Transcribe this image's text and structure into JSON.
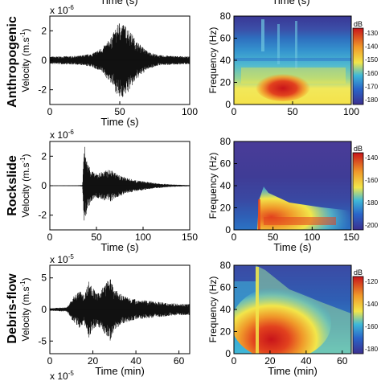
{
  "top_partial": {
    "left_label": "Time (s)",
    "right_label": "Time (s)",
    "bottom_left_exponent": "x 10",
    "bottom_left_exponent_power": "-5"
  },
  "chart_data": [
    {
      "type": "line",
      "row": "Anthropogenic",
      "exponent_label": "x 10",
      "exponent_power": "-6",
      "xlabel": "Time (s)",
      "ylabel": "Velocity (m.s-1)",
      "xlim": [
        0,
        100
      ],
      "ylim": [
        -3,
        3
      ],
      "xticks": [
        0,
        50,
        100
      ],
      "yticks": [
        -2,
        0,
        2
      ],
      "envelope": [
        [
          0,
          0.25
        ],
        [
          20,
          0.3
        ],
        [
          30,
          0.45
        ],
        [
          38,
          0.9
        ],
        [
          44,
          1.6
        ],
        [
          50,
          2.7
        ],
        [
          56,
          2.2
        ],
        [
          62,
          1.3
        ],
        [
          70,
          0.6
        ],
        [
          78,
          0.35
        ],
        [
          100,
          0.25
        ]
      ]
    },
    {
      "type": "heatmap",
      "row": "Anthropogenic",
      "xlabel": "",
      "ylabel": "Frequency (Hz)",
      "xlim": [
        0,
        100
      ],
      "ylim": [
        0,
        80
      ],
      "xticks": [
        0,
        50,
        100
      ],
      "yticks": [
        0,
        20,
        40,
        60,
        80
      ],
      "colorbar": {
        "unit": "dB",
        "ticks": [
          -130,
          -140,
          -150,
          -160,
          -170,
          -180
        ]
      }
    },
    {
      "type": "line",
      "row": "Rockslide",
      "exponent_label": "x 10",
      "exponent_power": "-6",
      "xlabel": "Time (s)",
      "ylabel": "Velocity (m.s-1)",
      "xlim": [
        0,
        150
      ],
      "ylim": [
        -3,
        3
      ],
      "xticks": [
        0,
        50,
        100,
        150
      ],
      "yticks": [
        -2,
        0,
        2
      ],
      "envelope": [
        [
          0,
          0.02
        ],
        [
          30,
          0.03
        ],
        [
          35,
          0.05
        ],
        [
          37,
          2.9
        ],
        [
          40,
          1.6
        ],
        [
          48,
          0.8
        ],
        [
          58,
          1.0
        ],
        [
          65,
          1.1
        ],
        [
          75,
          0.7
        ],
        [
          90,
          0.4
        ],
        [
          110,
          0.2
        ],
        [
          130,
          0.08
        ],
        [
          150,
          0.04
        ]
      ]
    },
    {
      "type": "heatmap",
      "row": "Rockslide",
      "xlabel": "Time (s)",
      "ylabel": "Frequency (Hz)",
      "xlim": [
        0,
        150
      ],
      "ylim": [
        0,
        80
      ],
      "xticks": [
        0,
        50,
        100,
        150
      ],
      "yticks": [
        0,
        20,
        40,
        60,
        80
      ],
      "colorbar": {
        "unit": "dB",
        "ticks": [
          -140,
          -160,
          -180,
          -200
        ]
      }
    },
    {
      "type": "line",
      "row": "Debris-flow",
      "exponent_label": "x 10",
      "exponent_power": "-5",
      "xlabel": "Time (min)",
      "ylabel": "Velocity (m.s-1)",
      "xlim": [
        0,
        65
      ],
      "ylim": [
        -7,
        7
      ],
      "xticks": [
        0,
        20,
        40,
        60
      ],
      "yticks": [
        -5,
        0,
        5
      ],
      "envelope": [
        [
          0,
          0.2
        ],
        [
          8,
          0.35
        ],
        [
          10,
          1.5
        ],
        [
          12,
          2.5
        ],
        [
          14,
          3.0
        ],
        [
          16,
          2.2
        ],
        [
          18,
          4.6
        ],
        [
          20,
          3.5
        ],
        [
          22,
          2.4
        ],
        [
          26,
          4.2
        ],
        [
          28,
          5.0
        ],
        [
          30,
          3.2
        ],
        [
          34,
          2.2
        ],
        [
          40,
          1.6
        ],
        [
          48,
          1.3
        ],
        [
          56,
          1.0
        ],
        [
          62,
          0.9
        ],
        [
          65,
          0.9
        ]
      ]
    },
    {
      "type": "heatmap",
      "row": "Debris-flow",
      "xlabel": "Time (min)",
      "ylabel": "Frequency (Hz)",
      "xlim": [
        0,
        65
      ],
      "ylim": [
        0,
        80
      ],
      "xticks": [
        0,
        20,
        40,
        60
      ],
      "yticks": [
        0,
        20,
        40,
        60,
        80
      ],
      "colorbar": {
        "unit": "dB",
        "ticks": [
          -120,
          -140,
          -160,
          -180
        ]
      }
    }
  ]
}
